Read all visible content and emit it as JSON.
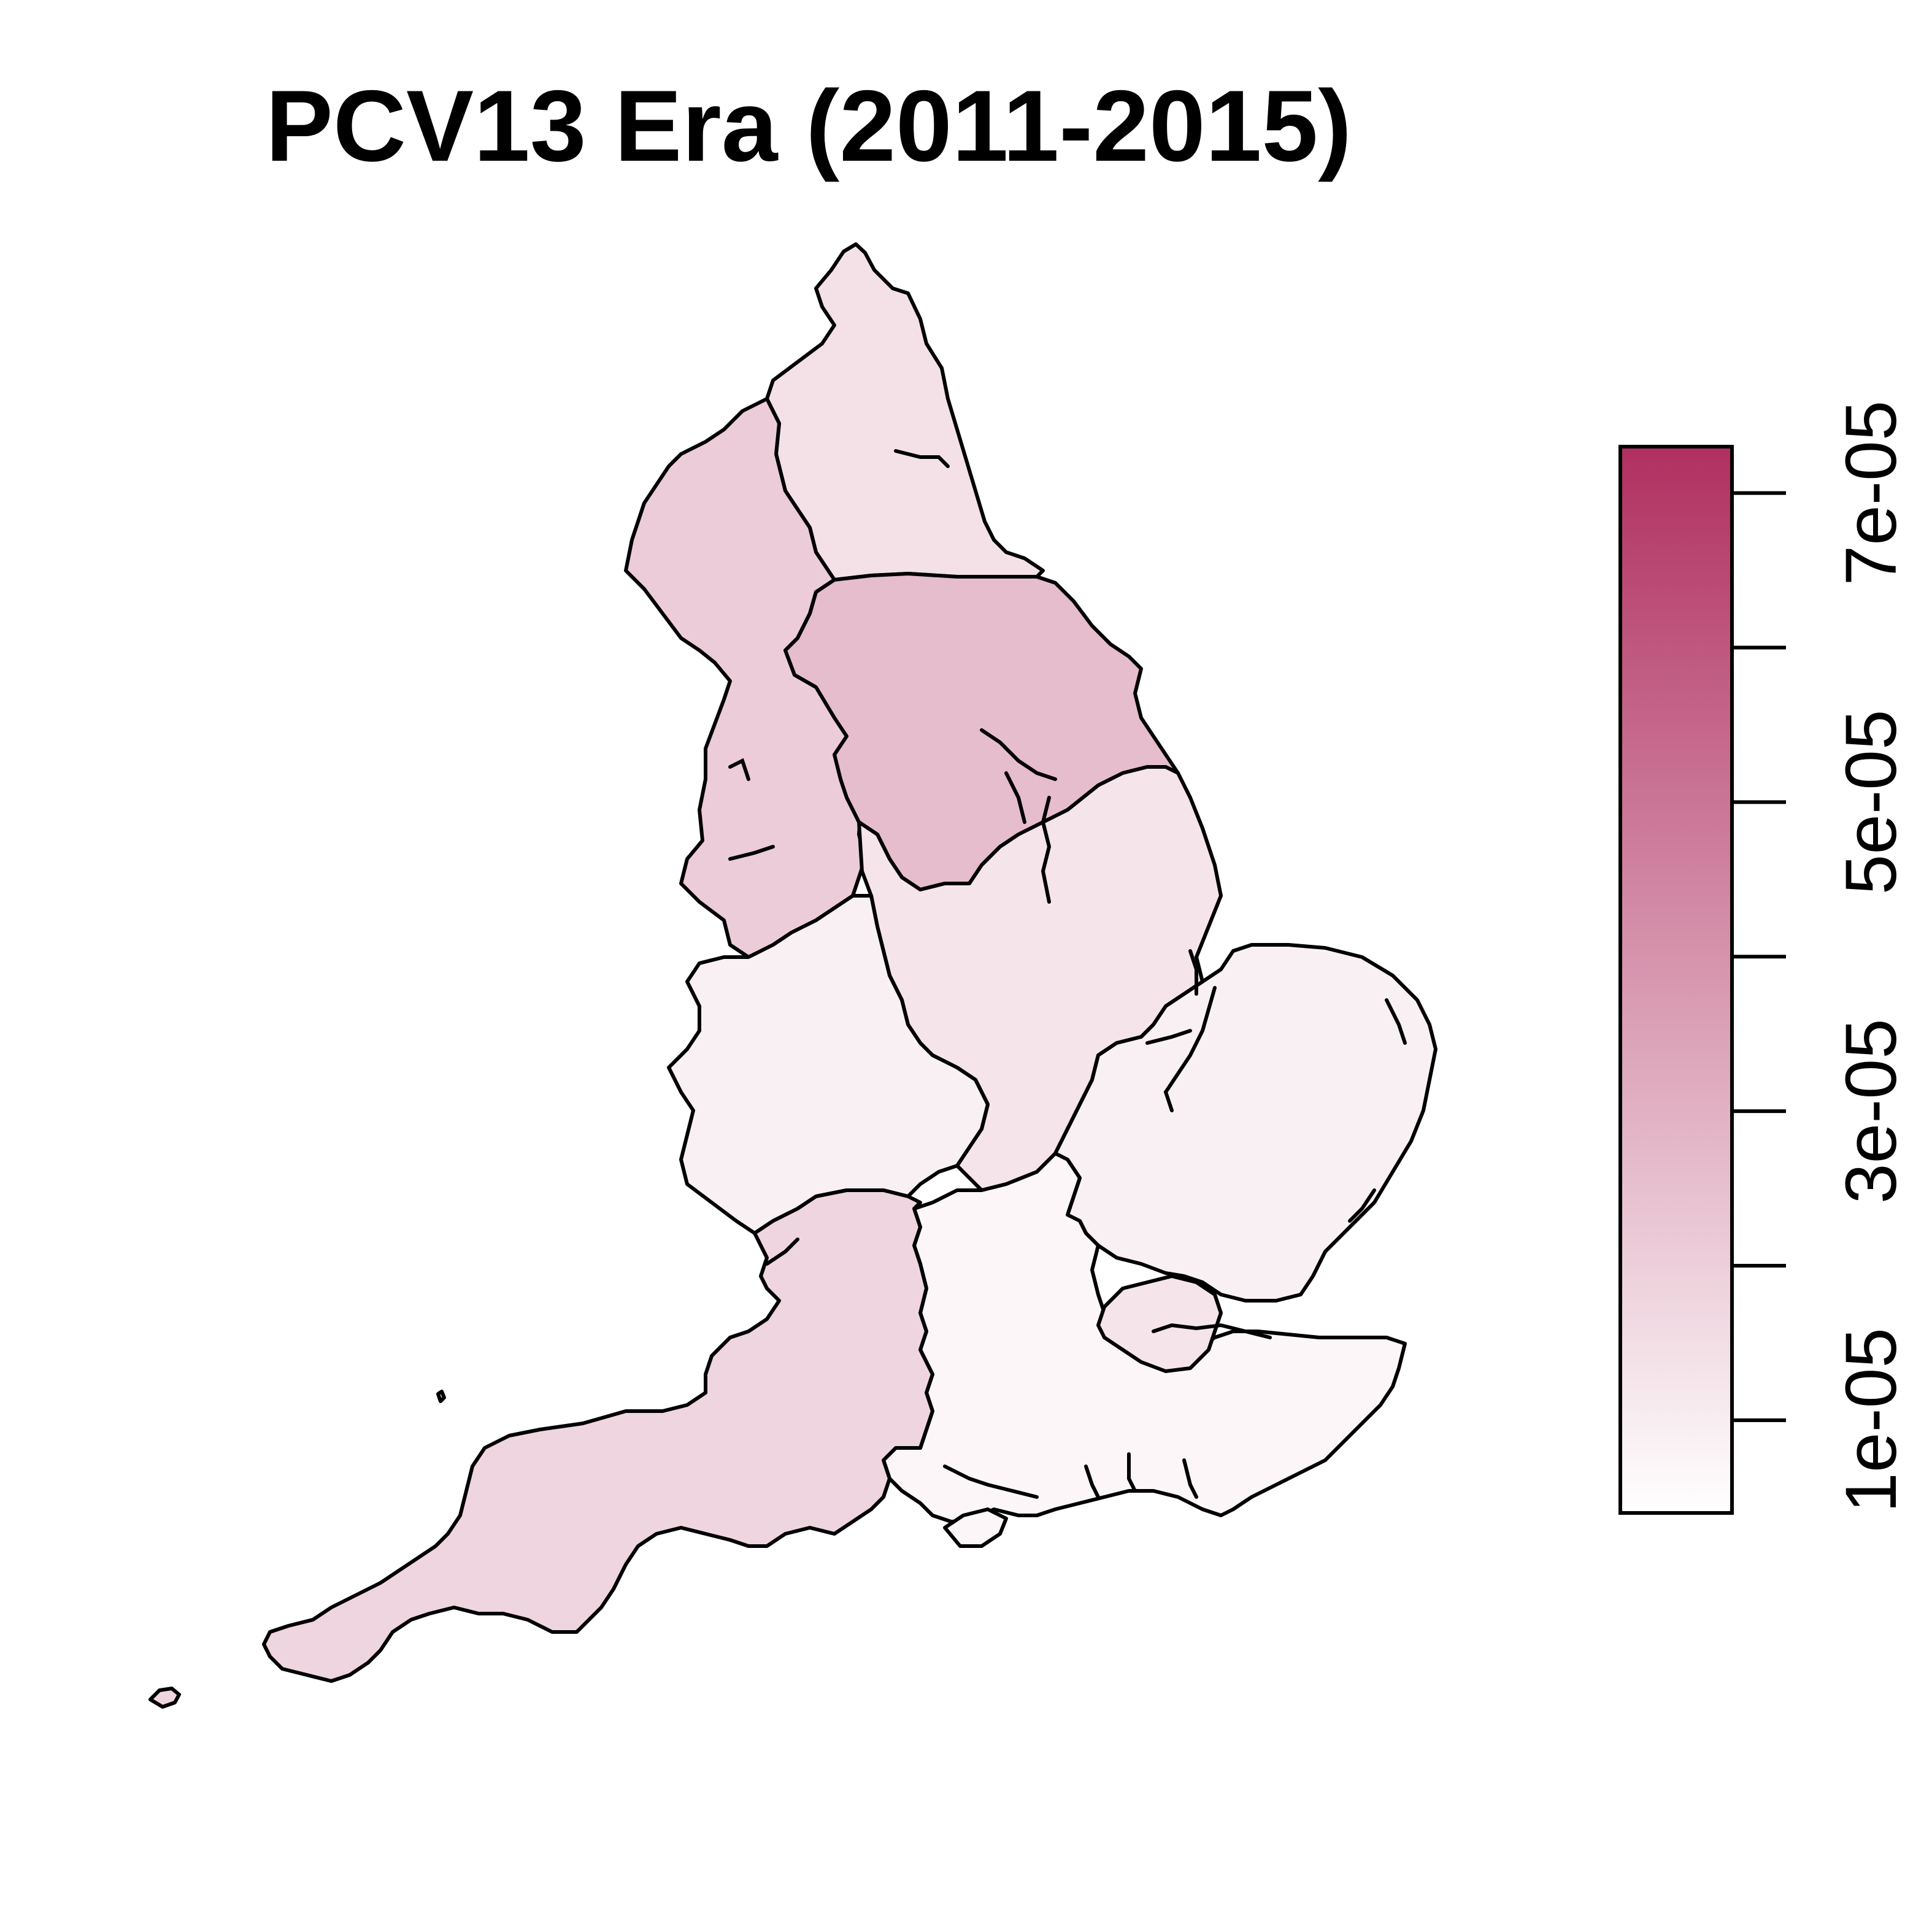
{
  "title": "PCV13 Era (2011-2015)",
  "map": {
    "regions": [
      {
        "name": "North East",
        "value": 1.4e-05
      },
      {
        "name": "North West",
        "value": 2.1e-05
      },
      {
        "name": "Yorkshire and The Humber",
        "value": 2.6e-05
      },
      {
        "name": "East Midlands",
        "value": 1.3e-05
      },
      {
        "name": "West Midlands",
        "value": 9e-06
      },
      {
        "name": "East of England",
        "value": 9e-06
      },
      {
        "name": "London",
        "value": 7e-06
      },
      {
        "name": "South East",
        "value": 1.3e-05
      },
      {
        "name": "South West",
        "value": 1.8e-05
      }
    ]
  },
  "legend": {
    "min": 4e-06,
    "max": 7.3e-05,
    "color_low": "#ffffff",
    "color_high": "#b03060",
    "ticks": [
      {
        "value": 1e-05,
        "label": "1e-05"
      },
      {
        "value": 2e-05,
        "label": ""
      },
      {
        "value": 3e-05,
        "label": "3e-05"
      },
      {
        "value": 4e-05,
        "label": ""
      },
      {
        "value": 5e-05,
        "label": "5e-05"
      },
      {
        "value": 6e-05,
        "label": ""
      },
      {
        "value": 7e-05,
        "label": "7e-05"
      }
    ]
  }
}
